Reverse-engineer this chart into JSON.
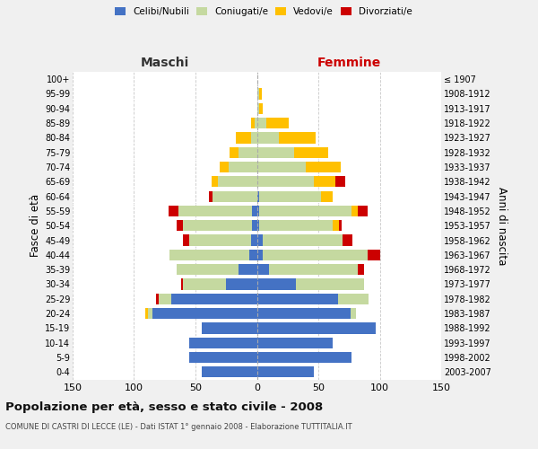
{
  "age_groups": [
    "0-4",
    "5-9",
    "10-14",
    "15-19",
    "20-24",
    "25-29",
    "30-34",
    "35-39",
    "40-44",
    "45-49",
    "50-54",
    "55-59",
    "60-64",
    "65-69",
    "70-74",
    "75-79",
    "80-84",
    "85-89",
    "90-94",
    "95-99",
    "100+"
  ],
  "birth_years": [
    "2003-2007",
    "1998-2002",
    "1993-1997",
    "1988-1992",
    "1983-1987",
    "1978-1982",
    "1973-1977",
    "1968-1972",
    "1963-1967",
    "1958-1962",
    "1953-1957",
    "1948-1952",
    "1943-1947",
    "1938-1942",
    "1933-1937",
    "1928-1932",
    "1923-1927",
    "1918-1922",
    "1913-1917",
    "1908-1912",
    "≤ 1907"
  ],
  "males": {
    "celibi": [
      45,
      55,
      55,
      45,
      85,
      70,
      25,
      15,
      6,
      5,
      4,
      4,
      0,
      0,
      0,
      0,
      0,
      0,
      0,
      0,
      0
    ],
    "coniugati": [
      0,
      0,
      0,
      0,
      4,
      10,
      35,
      50,
      65,
      50,
      56,
      60,
      36,
      32,
      23,
      15,
      5,
      2,
      0,
      0,
      0
    ],
    "vedovi": [
      0,
      0,
      0,
      0,
      2,
      0,
      0,
      0,
      0,
      0,
      0,
      0,
      0,
      5,
      7,
      7,
      12,
      3,
      0,
      0,
      0
    ],
    "divorziati": [
      0,
      0,
      0,
      0,
      0,
      2,
      2,
      0,
      0,
      5,
      5,
      8,
      3,
      0,
      0,
      0,
      0,
      0,
      0,
      0,
      0
    ]
  },
  "females": {
    "nubili": [
      46,
      77,
      62,
      97,
      76,
      66,
      32,
      10,
      5,
      5,
      2,
      2,
      2,
      0,
      0,
      0,
      0,
      0,
      0,
      0,
      0
    ],
    "coniugate": [
      0,
      0,
      0,
      0,
      5,
      25,
      55,
      72,
      85,
      65,
      60,
      75,
      50,
      46,
      40,
      30,
      18,
      8,
      2,
      2,
      0
    ],
    "vedove": [
      0,
      0,
      0,
      0,
      0,
      0,
      0,
      0,
      0,
      0,
      5,
      5,
      10,
      18,
      28,
      28,
      30,
      18,
      3,
      2,
      0
    ],
    "divorziate": [
      0,
      0,
      0,
      0,
      0,
      0,
      0,
      5,
      10,
      8,
      2,
      8,
      0,
      8,
      0,
      0,
      0,
      0,
      0,
      0,
      0
    ]
  },
  "colors": {
    "celibi": "#4472c4",
    "coniugati": "#c5d9a0",
    "vedovi": "#ffc000",
    "divorziati": "#cc0000"
  },
  "legend_labels": [
    "Celibi/Nubili",
    "Coniugati/e",
    "Vedovi/e",
    "Divorziati/e"
  ],
  "title": "Popolazione per età, sesso e stato civile - 2008",
  "subtitle": "COMUNE DI CASTRI DI LECCE (LE) - Dati ISTAT 1° gennaio 2008 - Elaborazione TUTTITALIA.IT",
  "xlabel_left": "Maschi",
  "xlabel_right": "Femmine",
  "ylabel_left": "Fasce di età",
  "ylabel_right": "Anni di nascita",
  "xlim": 150,
  "xticks": [
    150,
    100,
    50,
    0,
    50,
    100,
    150
  ],
  "bg_color": "#f0f0f0",
  "plot_bg": "#ffffff",
  "grid_color": "#c8c8c8"
}
